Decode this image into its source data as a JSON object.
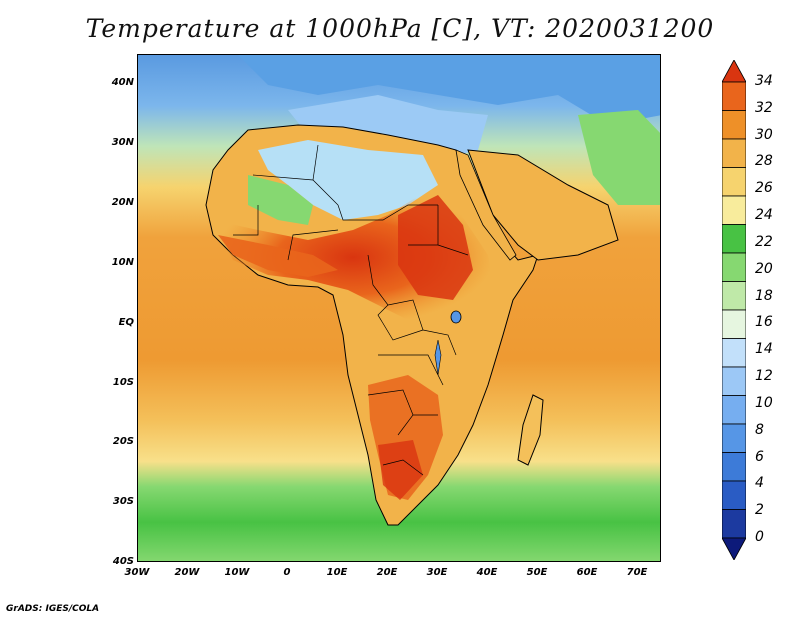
{
  "title": "Temperature at 1000hPa [C], VT: 2020031200",
  "credit": "GrADS: IGES/COLA",
  "axes": {
    "lon_ticks": [
      "30W",
      "20W",
      "10W",
      "0",
      "10E",
      "20E",
      "30E",
      "40E",
      "50E",
      "60E",
      "70E"
    ],
    "lat_ticks": [
      "40N",
      "30N",
      "20N",
      "10N",
      "EQ",
      "10S",
      "20S",
      "30S",
      "40S"
    ],
    "lon_range": [
      -30,
      75
    ],
    "lat_range": [
      -40,
      45
    ]
  },
  "colorbar": {
    "labels": [
      "0",
      "2",
      "4",
      "6",
      "8",
      "10",
      "12",
      "14",
      "16",
      "18",
      "20",
      "22",
      "24",
      "26",
      "28",
      "30",
      "32",
      "34"
    ],
    "colors": [
      "#0d1a7a",
      "#1c3aa0",
      "#2a5cc4",
      "#3d7bd8",
      "#5696e6",
      "#76aef0",
      "#9cc8f6",
      "#c2e0fa",
      "#e6f6e0",
      "#bfe9a8",
      "#86d871",
      "#48c244",
      "#f8ec9c",
      "#f6d36e",
      "#f2b34a",
      "#ee9028",
      "#e9651c",
      "#d93510"
    ]
  },
  "legend_colors": {
    "ocean_north": "#6ba6e6",
    "mediterranean": "#9ccaf5",
    "sahara_north": "#b6e0f6",
    "tropical_ocean": "#f2a13a",
    "southern_ocean": "#48c244",
    "hot_core": "#e04a16"
  }
}
